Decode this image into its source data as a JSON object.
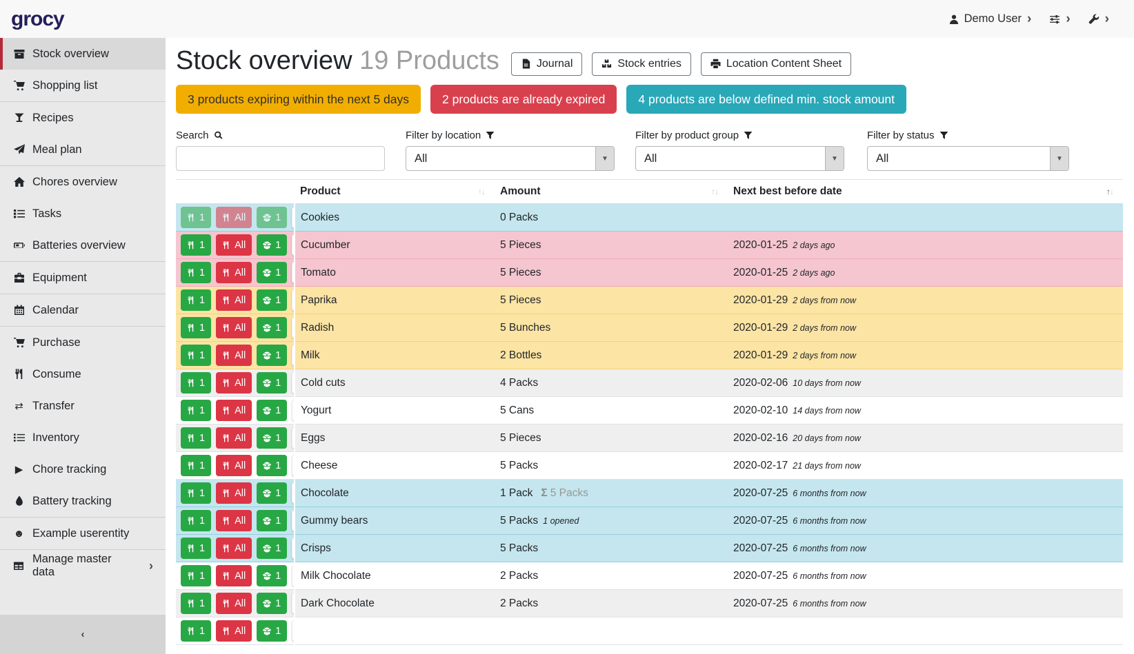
{
  "navbar": {
    "logo": "grocy",
    "user": {
      "icon": "user",
      "label": "Demo User",
      "chevron": "›"
    },
    "menus": [
      {
        "icon": "sliders",
        "name": "quick-settings-menu",
        "chevron": "›"
      },
      {
        "icon": "wrench",
        "name": "admin-menu",
        "chevron": "›"
      }
    ]
  },
  "sidebar": {
    "items": [
      {
        "label": "Stock overview",
        "icon": "box",
        "active": true
      },
      {
        "label": "Shopping list",
        "icon": "cart",
        "divider_after": true
      },
      {
        "label": "Recipes",
        "icon": "cocktail"
      },
      {
        "label": "Meal plan",
        "icon": "paper-plane",
        "divider_after": true
      },
      {
        "label": "Chores overview",
        "icon": "home"
      },
      {
        "label": "Tasks",
        "icon": "tasks"
      },
      {
        "label": "Batteries overview",
        "icon": "battery",
        "divider_after": true
      },
      {
        "label": "Equipment",
        "icon": "toolbox",
        "divider_after": true
      },
      {
        "label": "Calendar",
        "icon": "calendar",
        "divider_after": true
      },
      {
        "label": "Purchase",
        "icon": "cart"
      },
      {
        "label": "Consume",
        "icon": "utensils"
      },
      {
        "label": "Transfer",
        "icon": "exchange"
      },
      {
        "label": "Inventory",
        "icon": "list"
      },
      {
        "label": "Chore tracking",
        "icon": "play"
      },
      {
        "label": "Battery tracking",
        "icon": "drop",
        "divider_after": true
      },
      {
        "label": "Example userentity",
        "icon": "smiley",
        "divider_after": true
      },
      {
        "label": "Manage master data",
        "icon": "table",
        "chevron": "›"
      }
    ],
    "collapse_glyph": "‹"
  },
  "page": {
    "title": "Stock overview",
    "subtitle": "19 Products",
    "actions": [
      {
        "icon": "file",
        "label": "Journal",
        "name": "journal-button"
      },
      {
        "icon": "boxes",
        "label": "Stock entries",
        "name": "stock-entries-button"
      },
      {
        "icon": "printer",
        "label": "Location Content Sheet",
        "name": "location-content-sheet-button"
      }
    ]
  },
  "alerts": [
    {
      "name": "expiring-alert",
      "type": "expiring",
      "text": "3 products expiring within the next 5 days"
    },
    {
      "name": "expired-alert",
      "type": "expired",
      "text": "2 products are already expired"
    },
    {
      "name": "below-min-alert",
      "type": "below_min",
      "text": "4 products are below defined min. stock amount"
    }
  ],
  "filters": {
    "search": {
      "label": "Search",
      "icon": "search",
      "value": ""
    },
    "location": {
      "label": "Filter by location",
      "icon": "funnel",
      "value": "All"
    },
    "product_group": {
      "label": "Filter by product group",
      "icon": "funnel",
      "value": "All"
    },
    "status": {
      "label": "Filter by status",
      "icon": "funnel",
      "value": "All"
    }
  },
  "table": {
    "columns": [
      {
        "label": "",
        "sortable": false
      },
      {
        "label": "Product",
        "sortable": true,
        "sorted": ""
      },
      {
        "label": "Amount",
        "sortable": true,
        "sorted": ""
      },
      {
        "label": "Next best before date",
        "sortable": true,
        "sorted": "asc"
      }
    ],
    "row_actions": {
      "consume_one": "1",
      "consume_all": "All",
      "open_one": "1"
    },
    "sum_symbol": "Σ",
    "rows": [
      {
        "product": "Cookies",
        "amount": "0 Packs",
        "date": "",
        "date_note": "",
        "status": "below-min",
        "actions_muted": true
      },
      {
        "product": "Cucumber",
        "amount": "5 Pieces",
        "date": "2020-01-25",
        "date_note": "2 days ago",
        "status": "expired"
      },
      {
        "product": "Tomato",
        "amount": "5 Pieces",
        "date": "2020-01-25",
        "date_note": "2 days ago",
        "status": "expired"
      },
      {
        "product": "Paprika",
        "amount": "5 Pieces",
        "date": "2020-01-29",
        "date_note": "2 days from now",
        "status": "expiring"
      },
      {
        "product": "Radish",
        "amount": "5 Bunches",
        "date": "2020-01-29",
        "date_note": "2 days from now",
        "status": "expiring"
      },
      {
        "product": "Milk",
        "amount": "2 Bottles",
        "date": "2020-01-29",
        "date_note": "2 days from now",
        "status": "expiring"
      },
      {
        "product": "Cold cuts",
        "amount": "4 Packs",
        "date": "2020-02-06",
        "date_note": "10 days from now",
        "status": "none"
      },
      {
        "product": "Yogurt",
        "amount": "5 Cans",
        "date": "2020-02-10",
        "date_note": "14 days from now",
        "status": "none"
      },
      {
        "product": "Eggs",
        "amount": "5 Pieces",
        "date": "2020-02-16",
        "date_note": "20 days from now",
        "status": "none"
      },
      {
        "product": "Cheese",
        "amount": "5 Packs",
        "date": "2020-02-17",
        "date_note": "21 days from now",
        "status": "none"
      },
      {
        "product": "Chocolate",
        "amount": "1 Pack",
        "amount_sum": "5 Packs",
        "date": "2020-07-25",
        "date_note": "6 months from now",
        "status": "below-min"
      },
      {
        "product": "Gummy bears",
        "amount": "5 Packs",
        "amount_opened": "1 opened",
        "date": "2020-07-25",
        "date_note": "6 months from now",
        "status": "below-min"
      },
      {
        "product": "Crisps",
        "amount": "5 Packs",
        "date": "2020-07-25",
        "date_note": "6 months from now",
        "status": "below-min"
      },
      {
        "product": "Milk Chocolate",
        "amount": "2 Packs",
        "date": "2020-07-25",
        "date_note": "6 months from now",
        "status": "none"
      },
      {
        "product": "Dark Chocolate",
        "amount": "2 Packs",
        "date": "2020-07-25",
        "date_note": "6 months from now",
        "status": "none"
      },
      {
        "product": "",
        "amount": "",
        "date": "",
        "date_note": "",
        "status": "none",
        "partial": true
      }
    ]
  },
  "colors": {
    "logo": "#241f5a",
    "sidebar_active_border": "#b5293b",
    "badge_expiring_bg": "#f2ae00",
    "badge_expiring_fg": "#33302c",
    "badge_expired_bg": "#d9404e",
    "badge_expired_fg": "#ffffff",
    "badge_below_min_bg": "#29a8b8",
    "badge_below_min_fg": "#ffffff",
    "row_expired": "#f5c6cf",
    "row_expiring": "#fce4a4",
    "row_below_min": "#c5e6ee",
    "button_consume_one": "#28a745",
    "button_consume_all": "#dc3545",
    "button_open_one": "#28a745"
  }
}
